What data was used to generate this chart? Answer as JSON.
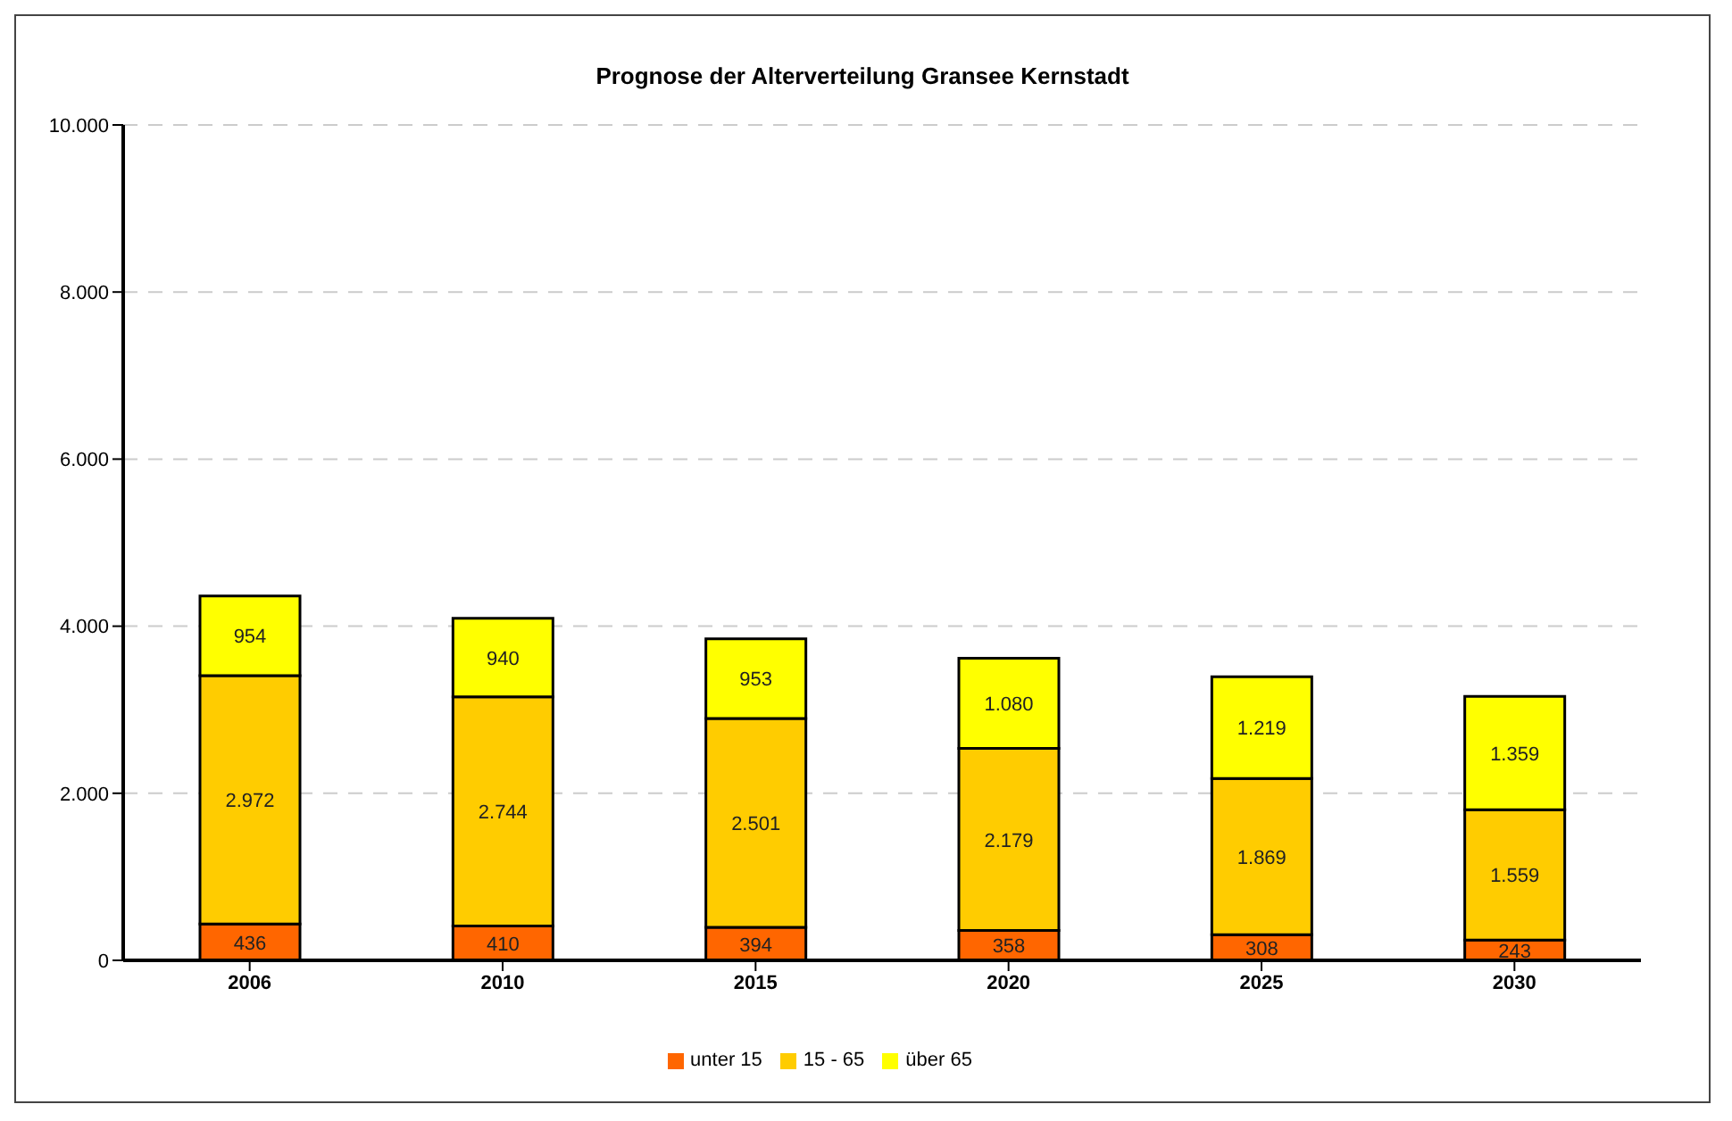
{
  "chart_data": {
    "type": "bar",
    "title": "Prognose der Alterverteilung Gransee Kernstadt",
    "categories": [
      "2006",
      "2010",
      "2015",
      "2020",
      "2025",
      "2030"
    ],
    "stacked": true,
    "series": [
      {
        "name": "unter 15",
        "color": "#ff6600",
        "values": [
          436,
          410,
          394,
          358,
          308,
          243
        ],
        "value_labels": [
          "436",
          "410",
          "394",
          "358",
          "308",
          "243"
        ]
      },
      {
        "name": "15 - 65",
        "color": "#ffcc00",
        "values": [
          2972,
          2744,
          2501,
          2179,
          1869,
          1559
        ],
        "value_labels": [
          "2.972",
          "2.744",
          "2.501",
          "2.179",
          "1.869",
          "1.559"
        ]
      },
      {
        "name": "über 65",
        "color": "#ffff00",
        "values": [
          954,
          940,
          953,
          1080,
          1219,
          1359
        ],
        "value_labels": [
          "954",
          "940",
          "953",
          "1.080",
          "1.219",
          "1.359"
        ]
      }
    ],
    "ylim": [
      0,
      10000
    ],
    "yticks": [
      0,
      {
        "value": 2000,
        "label": "2.000"
      },
      {
        "value": 4000,
        "label": "4.000"
      },
      {
        "value": 6000,
        "label": "6.000"
      },
      {
        "value": 8000,
        "label": "8.000"
      },
      {
        "value": 10000,
        "label": "10.000"
      }
    ],
    "grid": "y",
    "legend": "bottom"
  }
}
